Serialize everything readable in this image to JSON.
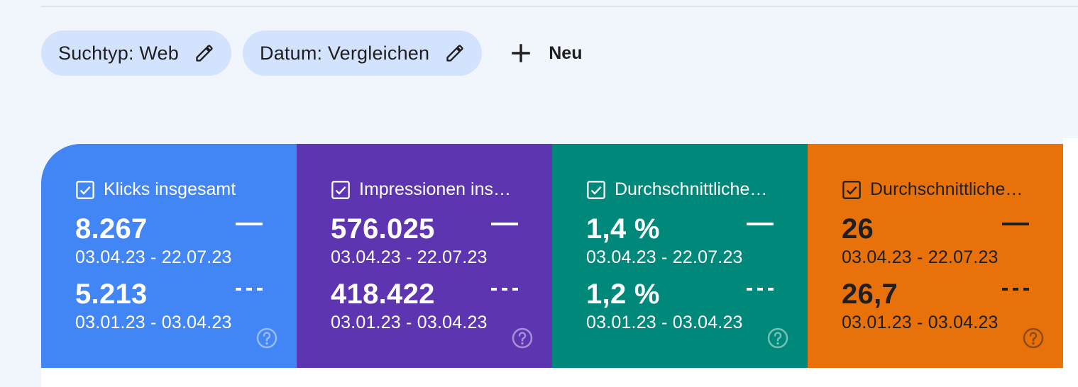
{
  "filters": {
    "chips": [
      {
        "label": "Suchtyp: Web"
      },
      {
        "label": "Datum: Vergleichen"
      }
    ],
    "new_label": "Neu"
  },
  "metrics": [
    {
      "title": "Klicks insgesamt",
      "primary_value": "8.267",
      "primary_range": "03.04.23 - 22.07.23",
      "secondary_value": "5.213",
      "secondary_range": "03.01.23 - 03.04.23",
      "color": "#4285f4",
      "text_color": "#ffffff",
      "checked": true
    },
    {
      "title": "Impressionen ins…",
      "primary_value": "576.025",
      "primary_range": "03.04.23 - 22.07.23",
      "secondary_value": "418.422",
      "secondary_range": "03.01.23 - 03.04.23",
      "color": "#5e35b1",
      "text_color": "#ffffff",
      "checked": true
    },
    {
      "title": "Durchschnittliche…",
      "primary_value": "1,4 %",
      "primary_range": "03.04.23 - 22.07.23",
      "secondary_value": "1,2 %",
      "secondary_range": "03.01.23 - 03.04.23",
      "color": "#00897b",
      "text_color": "#ffffff",
      "checked": true
    },
    {
      "title": "Durchschnittliche…",
      "primary_value": "26",
      "primary_range": "03.04.23 - 22.07.23",
      "secondary_value": "26,7",
      "secondary_range": "03.01.23 - 03.04.23",
      "color": "#e8710a",
      "text_color": "#1f1f1f",
      "checked": true
    }
  ],
  "icons": {
    "edit": "pencil-icon",
    "add": "plus-icon",
    "checkbox": "checkbox-checked-icon",
    "help": "help-circle-icon"
  }
}
